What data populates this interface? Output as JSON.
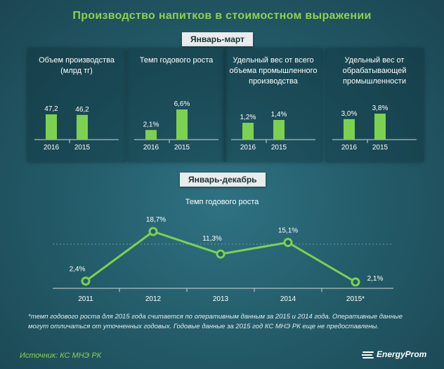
{
  "title": "Производство напитков в стоимостном выражении",
  "section_q1": "Январь-март",
  "section_year": "Январь-декабрь",
  "colors": {
    "accent": "#7dd151",
    "title": "#8fd14f",
    "background": "#245d6b"
  },
  "chart_data": [
    {
      "type": "bar",
      "title": "Объем производства (млрд тг)",
      "categories": [
        "2016",
        "2015"
      ],
      "values": [
        47.2,
        46.2
      ],
      "labels": [
        "47,2",
        "46,2"
      ]
    },
    {
      "type": "bar",
      "title": "Темп годового роста",
      "categories": [
        "2016",
        "2015"
      ],
      "values": [
        2.1,
        6.6
      ],
      "labels": [
        "2,1%",
        "6,6%"
      ]
    },
    {
      "type": "bar",
      "title": "Удельный вес от всего объема промышленного производства",
      "categories": [
        "2016",
        "2015"
      ],
      "values": [
        1.2,
        1.4
      ],
      "labels": [
        "1,2%",
        "1,4%"
      ]
    },
    {
      "type": "bar",
      "title": "Удельный вес от обрабатывающей промышленности",
      "categories": [
        "2016",
        "2015"
      ],
      "values": [
        3.0,
        3.8
      ],
      "labels": [
        "3,0%",
        "3,8%"
      ]
    },
    {
      "type": "line",
      "title": "Темп годового роста",
      "x": [
        "2011",
        "2012",
        "2013",
        "2014",
        "2015*"
      ],
      "values": [
        2.4,
        18.7,
        11.3,
        15.1,
        2.1
      ],
      "labels": [
        "2,4%",
        "18,7%",
        "11,3%",
        "15,1%",
        "2,1%"
      ]
    }
  ],
  "footnote": "*темп годового роста для 2015 года считается по оперативным данным за 2015 и 2014 года. Оперативные данные могут отличаться от уточненных годовых. Годовые данные за 2015 год КС МНЭ РК еще не предоставлены.",
  "source": "Источник: КС МНЭ РК",
  "logo": "EnergyProm"
}
